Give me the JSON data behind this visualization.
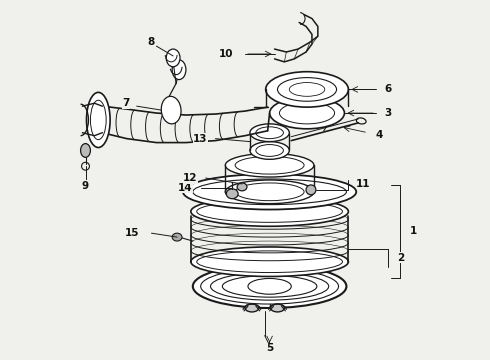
{
  "bg_color": "#f0f0ec",
  "line_color": "#1a1a1a",
  "text_color": "#111111",
  "fig_width": 4.9,
  "fig_height": 3.6,
  "dpi": 100
}
